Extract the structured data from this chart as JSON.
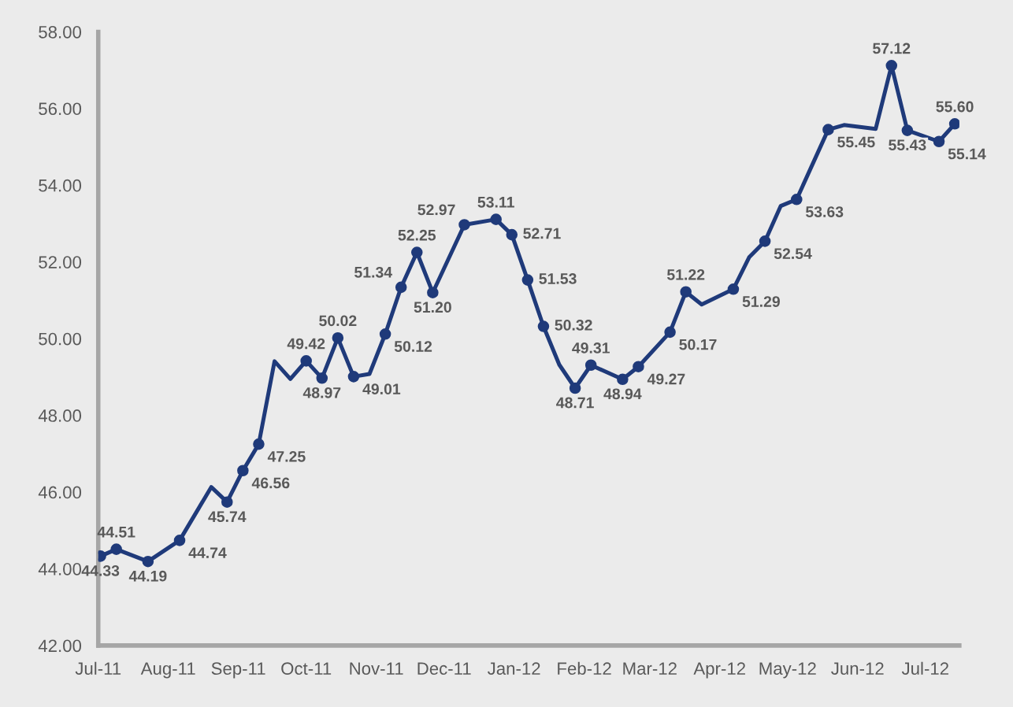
{
  "chart_data": {
    "type": "line",
    "xlim": [
      "2011-07-01",
      "2012-07-16"
    ],
    "xticks": [
      {
        "value": "2011-07-01",
        "label": "Jul-11"
      },
      {
        "value": "2011-08-01",
        "label": "Aug-11"
      },
      {
        "value": "2011-09-01",
        "label": "Sep-11"
      },
      {
        "value": "2011-10-01",
        "label": "Oct-11"
      },
      {
        "value": "2011-11-01",
        "label": "Nov-11"
      },
      {
        "value": "2011-12-01",
        "label": "Dec-11"
      },
      {
        "value": "2012-01-01",
        "label": "Jan-12"
      },
      {
        "value": "2012-02-01",
        "label": "Feb-12"
      },
      {
        "value": "2012-03-01",
        "label": "Mar-12"
      },
      {
        "value": "2012-04-01",
        "label": "Apr-12"
      },
      {
        "value": "2012-05-01",
        "label": "May-12"
      },
      {
        "value": "2012-06-01",
        "label": "Jun-12"
      },
      {
        "value": "2012-07-01",
        "label": "Jul-12"
      }
    ],
    "ylim": [
      42,
      58
    ],
    "yticks": [
      {
        "value": 42,
        "label": "42.00"
      },
      {
        "value": 44,
        "label": "44.00"
      },
      {
        "value": 46,
        "label": "46.00"
      },
      {
        "value": 48,
        "label": "48.00"
      },
      {
        "value": 50,
        "label": "50.00"
      },
      {
        "value": 52,
        "label": "52.00"
      },
      {
        "value": 54,
        "label": "54.00"
      },
      {
        "value": 56,
        "label": "56.00"
      },
      {
        "value": 58,
        "label": "58.00"
      }
    ],
    "grid": false,
    "legend": false,
    "series": [
      {
        "type": "line",
        "color": "#1f3a7a",
        "marker": "none",
        "line_style": "solid",
        "x": [
          "2011-07-02",
          "2011-07-09",
          "2011-07-23",
          "2011-08-06",
          "2011-08-20",
          "2011-08-27",
          "2011-09-03",
          "2011-09-10",
          "2011-09-17",
          "2011-09-24",
          "2011-10-01",
          "2011-10-08",
          "2011-10-15",
          "2011-10-22",
          "2011-10-29",
          "2011-11-05",
          "2011-11-12",
          "2011-11-19",
          "2011-11-26",
          "2011-12-10",
          "2011-12-24",
          "2011-12-31",
          "2012-01-07",
          "2012-01-14",
          "2012-01-21",
          "2012-01-28",
          "2012-02-04",
          "2012-02-18",
          "2012-02-25",
          "2012-03-10",
          "2012-03-17",
          "2012-03-24",
          "2012-04-07",
          "2012-04-14",
          "2012-04-21",
          "2012-04-28",
          "2012-05-05",
          "2012-05-19",
          "2012-05-26",
          "2012-06-09",
          "2012-06-16",
          "2012-06-23",
          "2012-07-07",
          "2012-07-14"
        ],
        "values": [
          44.33,
          44.51,
          44.19,
          44.74,
          46.13,
          45.74,
          46.56,
          47.25,
          49.41,
          48.95,
          49.42,
          48.97,
          50.02,
          49.01,
          49.08,
          50.12,
          51.34,
          52.25,
          51.2,
          52.97,
          53.11,
          52.71,
          51.53,
          50.32,
          49.32,
          48.71,
          49.31,
          48.94,
          49.27,
          50.17,
          51.22,
          50.89,
          51.29,
          52.12,
          52.54,
          53.46,
          53.63,
          55.45,
          55.57,
          55.47,
          57.12,
          55.43,
          55.14,
          55.6
        ]
      },
      {
        "type": "scatter",
        "color": "#1f3a7a",
        "marker": "circle",
        "x": [
          "2011-07-02",
          "2011-07-09",
          "2011-07-23",
          "2011-08-06",
          "2011-08-27",
          "2011-09-03",
          "2011-09-10",
          "2011-10-01",
          "2011-10-08",
          "2011-10-15",
          "2011-10-22",
          "2011-11-05",
          "2011-11-12",
          "2011-11-19",
          "2011-11-26",
          "2011-12-10",
          "2011-12-24",
          "2011-12-31",
          "2012-01-07",
          "2012-01-14",
          "2012-01-28",
          "2012-02-04",
          "2012-02-18",
          "2012-02-25",
          "2012-03-10",
          "2012-03-17",
          "2012-04-07",
          "2012-04-21",
          "2012-05-05",
          "2012-05-19",
          "2012-06-16",
          "2012-06-23",
          "2012-07-07",
          "2012-07-14"
        ],
        "values": [
          44.33,
          44.51,
          44.19,
          44.74,
          45.74,
          46.56,
          47.25,
          49.42,
          48.97,
          50.02,
          49.01,
          50.12,
          51.34,
          52.25,
          51.2,
          52.97,
          53.11,
          52.71,
          51.53,
          50.32,
          48.71,
          49.31,
          48.94,
          49.27,
          50.17,
          51.22,
          51.29,
          52.54,
          53.63,
          55.45,
          57.12,
          55.43,
          55.14,
          55.6
        ],
        "value_labels": [
          "44.33",
          "44.51",
          "44.19",
          "44.74",
          "45.74",
          "46.56",
          "47.25",
          "49.42",
          "48.97",
          "50.02",
          "49.01",
          "50.12",
          "51.34",
          "52.25",
          "51.20",
          "52.97",
          "53.11",
          "52.71",
          "51.53",
          "50.32",
          "48.71",
          "49.31",
          "48.94",
          "49.27",
          "50.17",
          "51.22",
          "51.29",
          "52.54",
          "53.63",
          "55.45",
          "57.12",
          "55.43",
          "55.14",
          "55.60"
        ]
      }
    ]
  }
}
